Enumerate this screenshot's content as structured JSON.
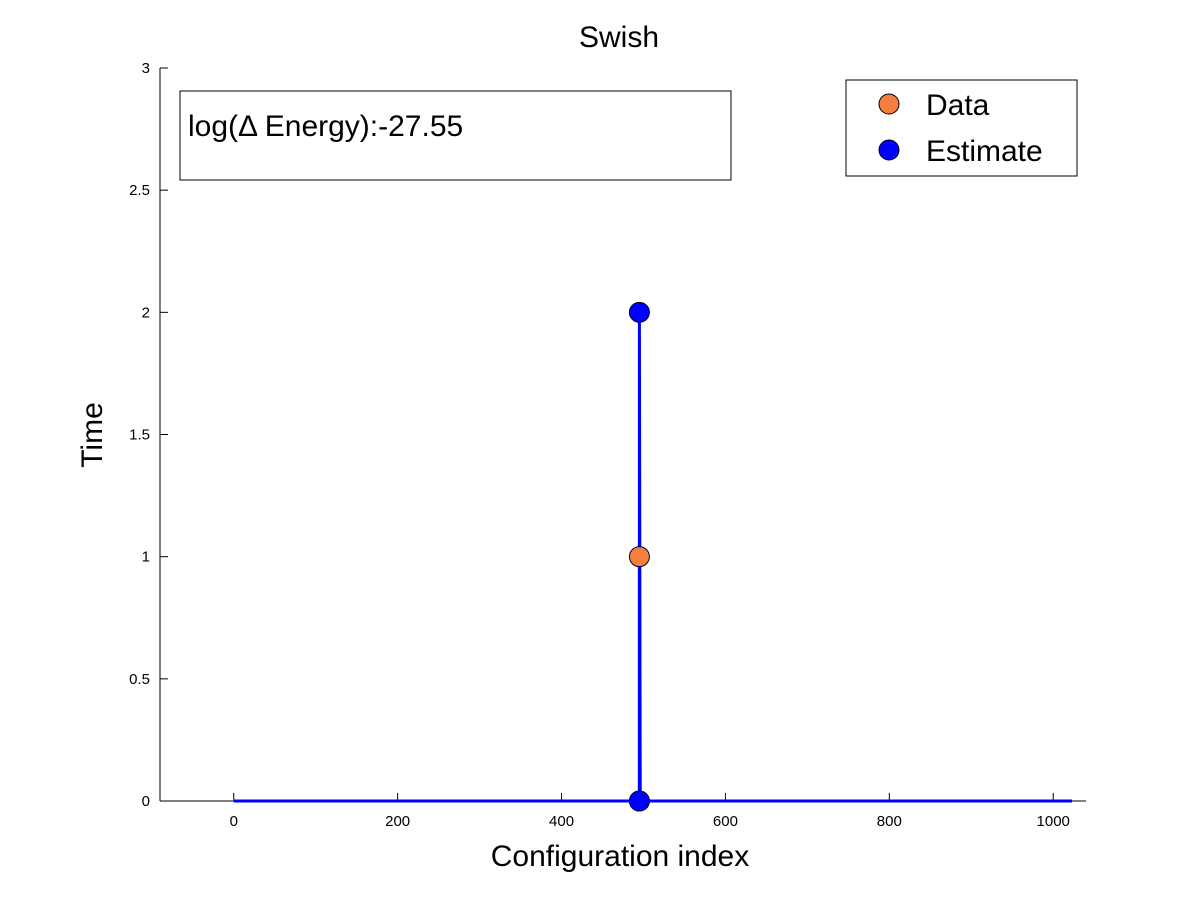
{
  "chart_data": {
    "type": "line",
    "title": "Swish",
    "xlabel": "Configuration index",
    "ylabel": "Time",
    "xlim": [
      -90,
      1040
    ],
    "ylim": [
      0,
      3
    ],
    "xticks": [
      0,
      200,
      400,
      600,
      800,
      1000
    ],
    "yticks": [
      0,
      0.5,
      1,
      1.5,
      2,
      2.5,
      3
    ],
    "xtick_labels": [
      "0",
      "200",
      "400",
      "600",
      "800",
      "1000"
    ],
    "ytick_labels": [
      "0",
      "0.5",
      "1",
      "1.5",
      "2",
      "2.5",
      "3"
    ],
    "grid": false,
    "legend_position": "top-right",
    "annotation": "log(Δ Energy):-27.55",
    "series": [
      {
        "name": "Data",
        "marker": "circle",
        "color": "#f47f3f",
        "x": [
          0,
          495,
          495,
          496,
          1023
        ],
        "y": [
          0,
          0,
          1,
          0,
          0
        ]
      },
      {
        "name": "Estimate",
        "marker": "circle",
        "color": "#0000ff",
        "x": [
          0,
          495,
          495,
          496,
          1023
        ],
        "y": [
          0,
          0,
          2,
          0,
          0
        ]
      }
    ]
  }
}
